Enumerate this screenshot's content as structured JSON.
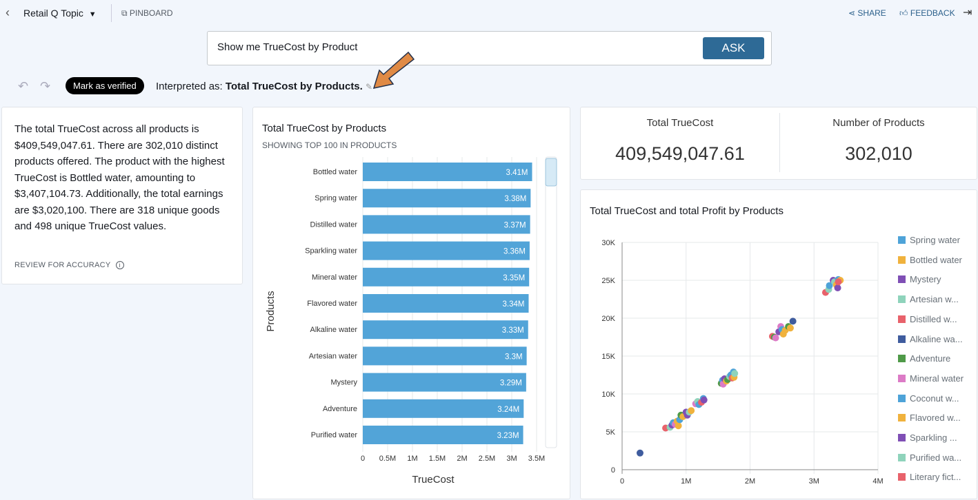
{
  "header": {
    "topic": "Retail Q Topic",
    "pinboard": "PINBOARD",
    "share": "SHARE",
    "feedback": "FEEDBACK"
  },
  "search": {
    "value": "Show me TrueCost by Product",
    "ask": "ASK"
  },
  "interpretation": {
    "verify": "Mark as verified",
    "prefix": "Interpreted as: ",
    "text": "Total TrueCost by Products."
  },
  "summary": {
    "text": "The total TrueCost across all products is $409,549,047.61. There are 302,010 distinct products offered. The product with the highest TrueCost is Bottled water, amounting to $3,407,104.73. Additionally, the total earnings are $3,020,100. There are 318 unique goods and 498 unique TrueCost values.",
    "review": "REVIEW FOR ACCURACY"
  },
  "kpis": [
    {
      "label": "Total TrueCost",
      "value": "409,549,047.61"
    },
    {
      "label": "Number of Products",
      "value": "302,010"
    }
  ],
  "colors": {
    "bar": "#52a4d8",
    "accent": "#2e6a96",
    "annotation_arrow": "#e08a45"
  },
  "chart_data": [
    {
      "type": "bar",
      "orientation": "horizontal",
      "title": "Total TrueCost by Products",
      "subtitle": "SHOWING TOP 100 IN PRODUCTS",
      "xlabel": "TrueCost",
      "ylabel": "Products",
      "xlim": [
        0,
        3500000
      ],
      "xticks": [
        "0",
        "0.5M",
        "1M",
        "1.5M",
        "2M",
        "2.5M",
        "3M",
        "3.5M"
      ],
      "categories": [
        "Bottled water",
        "Spring water",
        "Distilled water",
        "Sparkling water",
        "Mineral water",
        "Flavored water",
        "Alkaline water",
        "Artesian water",
        "Mystery",
        "Adventure",
        "Purified water"
      ],
      "values": [
        3410000,
        3380000,
        3370000,
        3360000,
        3350000,
        3340000,
        3330000,
        3300000,
        3290000,
        3240000,
        3230000
      ],
      "labels": [
        "3.41M",
        "3.38M",
        "3.37M",
        "3.36M",
        "3.35M",
        "3.34M",
        "3.33M",
        "3.3M",
        "3.29M",
        "3.24M",
        "3.23M"
      ]
    },
    {
      "type": "scatter",
      "title": "Total TrueCost and total Profit by Products",
      "xlim": [
        0,
        4000000
      ],
      "ylim": [
        0,
        30000
      ],
      "xticks": [
        "0",
        "1M",
        "2M",
        "3M",
        "4M"
      ],
      "yticks": [
        "0",
        "5K",
        "10K",
        "15K",
        "20K",
        "25K",
        "30K"
      ],
      "legend": "right",
      "series": [
        {
          "name": "Spring water",
          "color": "#4ea3d8"
        },
        {
          "name": "Bottled water",
          "color": "#f0b23d"
        },
        {
          "name": "Mystery",
          "color": "#7f4fb5"
        },
        {
          "name": "Artesian w...",
          "color": "#8fd3bb"
        },
        {
          "name": "Distilled w...",
          "color": "#e8626b"
        },
        {
          "name": "Alkaline wa...",
          "color": "#3f5c9e"
        },
        {
          "name": "Adventure",
          "color": "#4f9a48"
        },
        {
          "name": "Mineral water",
          "color": "#dc7bc6"
        },
        {
          "name": "Coconut w...",
          "color": "#4ea3d8"
        },
        {
          "name": "Flavored w...",
          "color": "#f0b23d"
        },
        {
          "name": "Sparkling ...",
          "color": "#7f4fb5"
        },
        {
          "name": "Purified wa...",
          "color": "#8fd3bb"
        },
        {
          "name": "Literary fict...",
          "color": "#e8626b"
        }
      ],
      "points": [
        [
          0.28,
          2200,
          5
        ],
        [
          0.68,
          5500,
          4
        ],
        [
          0.75,
          5600,
          3
        ],
        [
          0.78,
          5900,
          2
        ],
        [
          0.8,
          6200,
          0
        ],
        [
          0.83,
          6000,
          7
        ],
        [
          0.86,
          6400,
          1
        ],
        [
          0.88,
          5800,
          9
        ],
        [
          0.9,
          6600,
          8
        ],
        [
          0.92,
          7200,
          6
        ],
        [
          0.95,
          7000,
          1
        ],
        [
          1.0,
          7600,
          2
        ],
        [
          1.02,
          7200,
          10
        ],
        [
          1.05,
          7600,
          3
        ],
        [
          1.08,
          7800,
          9
        ],
        [
          1.15,
          8700,
          7
        ],
        [
          1.18,
          9000,
          3
        ],
        [
          1.2,
          8600,
          0
        ],
        [
          1.24,
          8900,
          4
        ],
        [
          1.27,
          9400,
          8
        ],
        [
          1.28,
          9200,
          2
        ],
        [
          1.55,
          11400,
          6
        ],
        [
          1.57,
          11800,
          0
        ],
        [
          1.58,
          11300,
          7
        ],
        [
          1.6,
          12000,
          10
        ],
        [
          1.63,
          11700,
          1
        ],
        [
          1.65,
          11900,
          6
        ],
        [
          1.68,
          12300,
          3
        ],
        [
          1.7,
          12500,
          8
        ],
        [
          1.72,
          12100,
          4
        ],
        [
          1.74,
          12900,
          0
        ],
        [
          1.75,
          12200,
          1
        ],
        [
          1.76,
          12700,
          11
        ],
        [
          2.35,
          17600,
          4
        ],
        [
          2.38,
          17500,
          6
        ],
        [
          2.4,
          17400,
          7
        ],
        [
          2.45,
          18200,
          2
        ],
        [
          2.48,
          18900,
          7
        ],
        [
          2.5,
          18500,
          0
        ],
        [
          2.52,
          17900,
          1
        ],
        [
          2.55,
          18400,
          9
        ],
        [
          2.6,
          18900,
          6
        ],
        [
          2.63,
          18700,
          1
        ],
        [
          2.67,
          19600,
          5
        ],
        [
          3.18,
          23400,
          4
        ],
        [
          3.23,
          23800,
          3
        ],
        [
          3.24,
          24300,
          0
        ],
        [
          3.3,
          25000,
          2
        ],
        [
          3.32,
          24800,
          3
        ],
        [
          3.35,
          24400,
          1
        ],
        [
          3.37,
          24000,
          10
        ],
        [
          3.38,
          25100,
          8
        ],
        [
          3.41,
          25000,
          9
        ],
        [
          3.38,
          24800,
          12
        ]
      ]
    }
  ]
}
